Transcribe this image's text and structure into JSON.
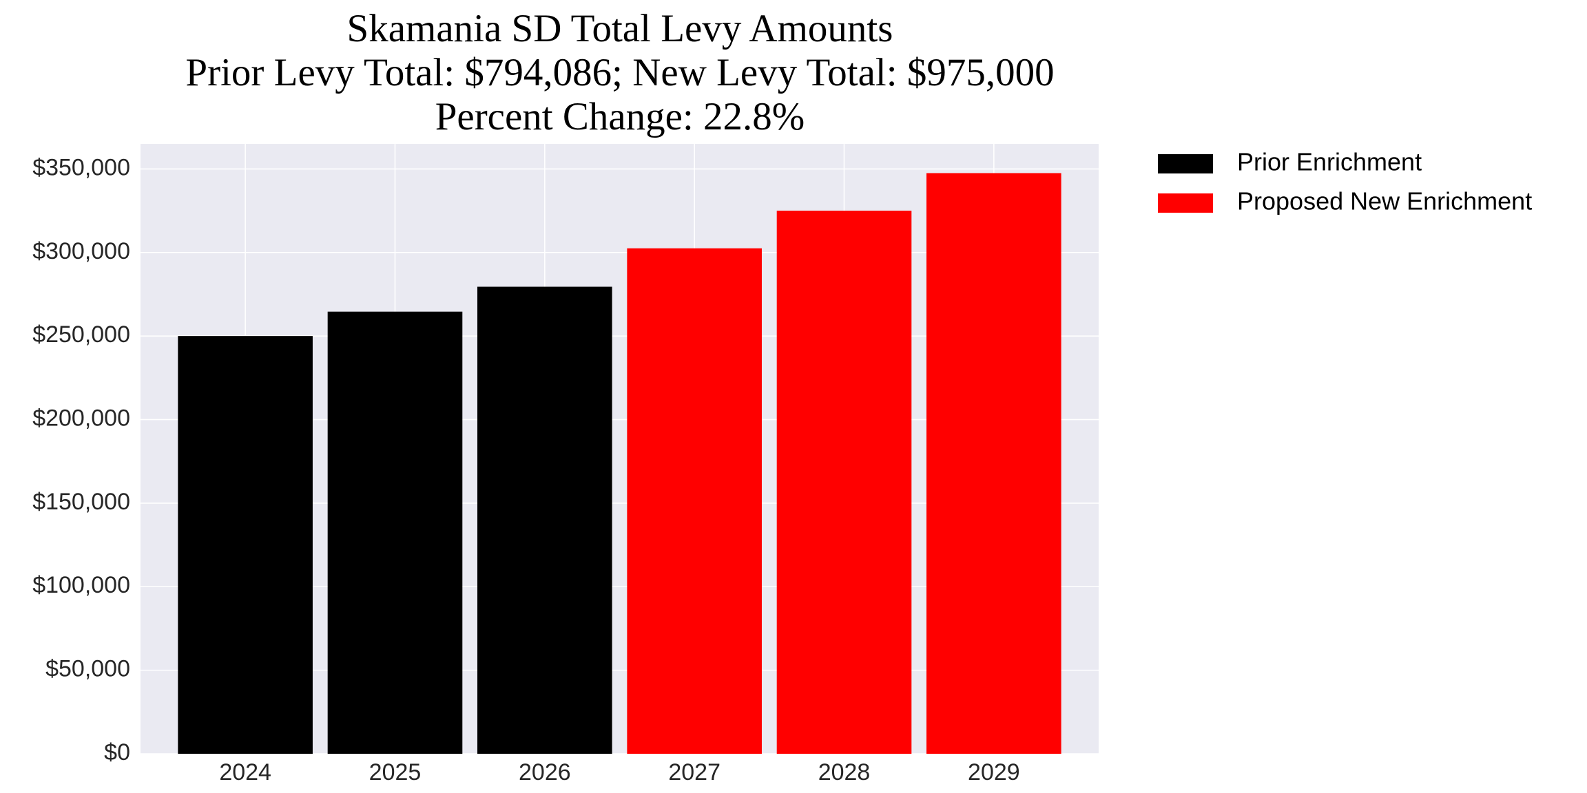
{
  "chart_data": {
    "type": "bar",
    "title": [
      "Skamania SD Total Levy Amounts",
      "Prior Levy Total:  $794,086; New Levy Total: $975,000",
      "Percent Change: 22.8%"
    ],
    "categories": [
      "2024",
      "2025",
      "2026",
      "2027",
      "2028",
      "2029"
    ],
    "series": [
      {
        "name": "Prior Enrichment",
        "color": "#000000",
        "values": [
          250000,
          264600,
          279500,
          null,
          null,
          null
        ]
      },
      {
        "name": "Proposed New Enrichment",
        "color": "#ff0000",
        "values": [
          null,
          null,
          null,
          302500,
          325000,
          347500
        ]
      }
    ],
    "ylim": [
      0,
      365000
    ],
    "yticks": [
      {
        "value": 0,
        "label": "$0"
      },
      {
        "value": 50000,
        "label": "$50,000"
      },
      {
        "value": 100000,
        "label": "$100,000"
      },
      {
        "value": 150000,
        "label": "$150,000"
      },
      {
        "value": 200000,
        "label": "$200,000"
      },
      {
        "value": 250000,
        "label": "$250,000"
      },
      {
        "value": 300000,
        "label": "$300,000"
      },
      {
        "value": 350000,
        "label": "$350,000"
      }
    ],
    "grid": true,
    "legend": "outside-right"
  }
}
